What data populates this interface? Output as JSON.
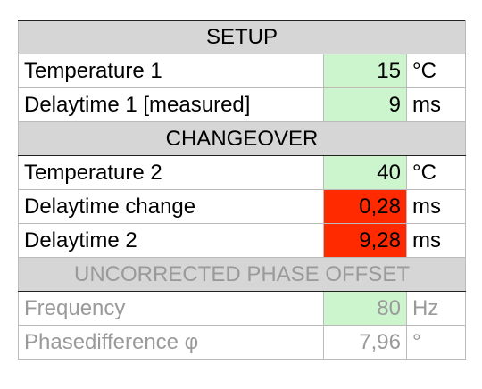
{
  "sections": [
    {
      "title": "SETUP",
      "rows": [
        {
          "label": "Temperature 1",
          "value": "15",
          "unit": "°C"
        },
        {
          "label": "Delaytime 1 [measured]",
          "value": "9",
          "unit": "ms"
        }
      ]
    },
    {
      "title": "CHANGEOVER",
      "rows": [
        {
          "label": "Temperature 2",
          "value": "40",
          "unit": "°C"
        },
        {
          "label": "Delaytime change",
          "value": "0,28",
          "unit": "ms"
        },
        {
          "label": "Delaytime 2",
          "value": "9,28",
          "unit": "ms"
        }
      ]
    },
    {
      "title": "UNCORRECTED PHASE OFFSET",
      "rows": [
        {
          "label": "Frequency",
          "value": "80",
          "unit": "Hz"
        },
        {
          "label": "Phasedifference φ",
          "value": "7,96",
          "unit": "°"
        }
      ]
    }
  ]
}
